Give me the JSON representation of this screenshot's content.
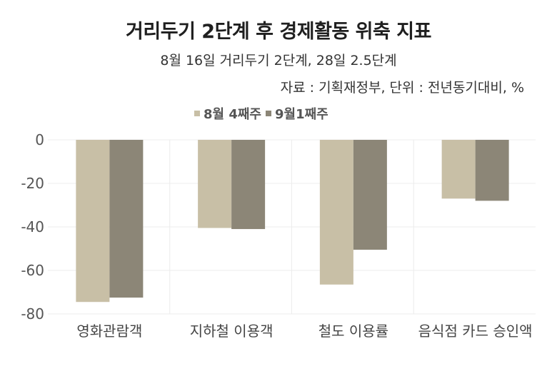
{
  "chart_data": {
    "type": "bar",
    "title": "거리두기 2단계 후 경제활동 위축 지표",
    "subtitle": "8월 16일 거리두기 2단계, 28일 2.5단계",
    "source_note": "자료 : 기획재정부, 단위 : 전년동기대비, %",
    "categories": [
      "영화관람객",
      "지하철 이용객",
      "철도 이용률",
      "음식점 카드 승인액"
    ],
    "series": [
      {
        "name": "8월 4째주",
        "values": [
          -74.5,
          -40.5,
          -66.5,
          -27
        ],
        "color": "#c8bfa6"
      },
      {
        "name": "9월1째주",
        "values": [
          -72.5,
          -41,
          -50.5,
          -28
        ],
        "color": "#8c8677"
      }
    ],
    "ylim": [
      -80,
      0
    ],
    "yticks": [
      "0",
      "-20",
      "-40",
      "-60",
      "-80"
    ],
    "grid": true,
    "legend_position": "top"
  }
}
